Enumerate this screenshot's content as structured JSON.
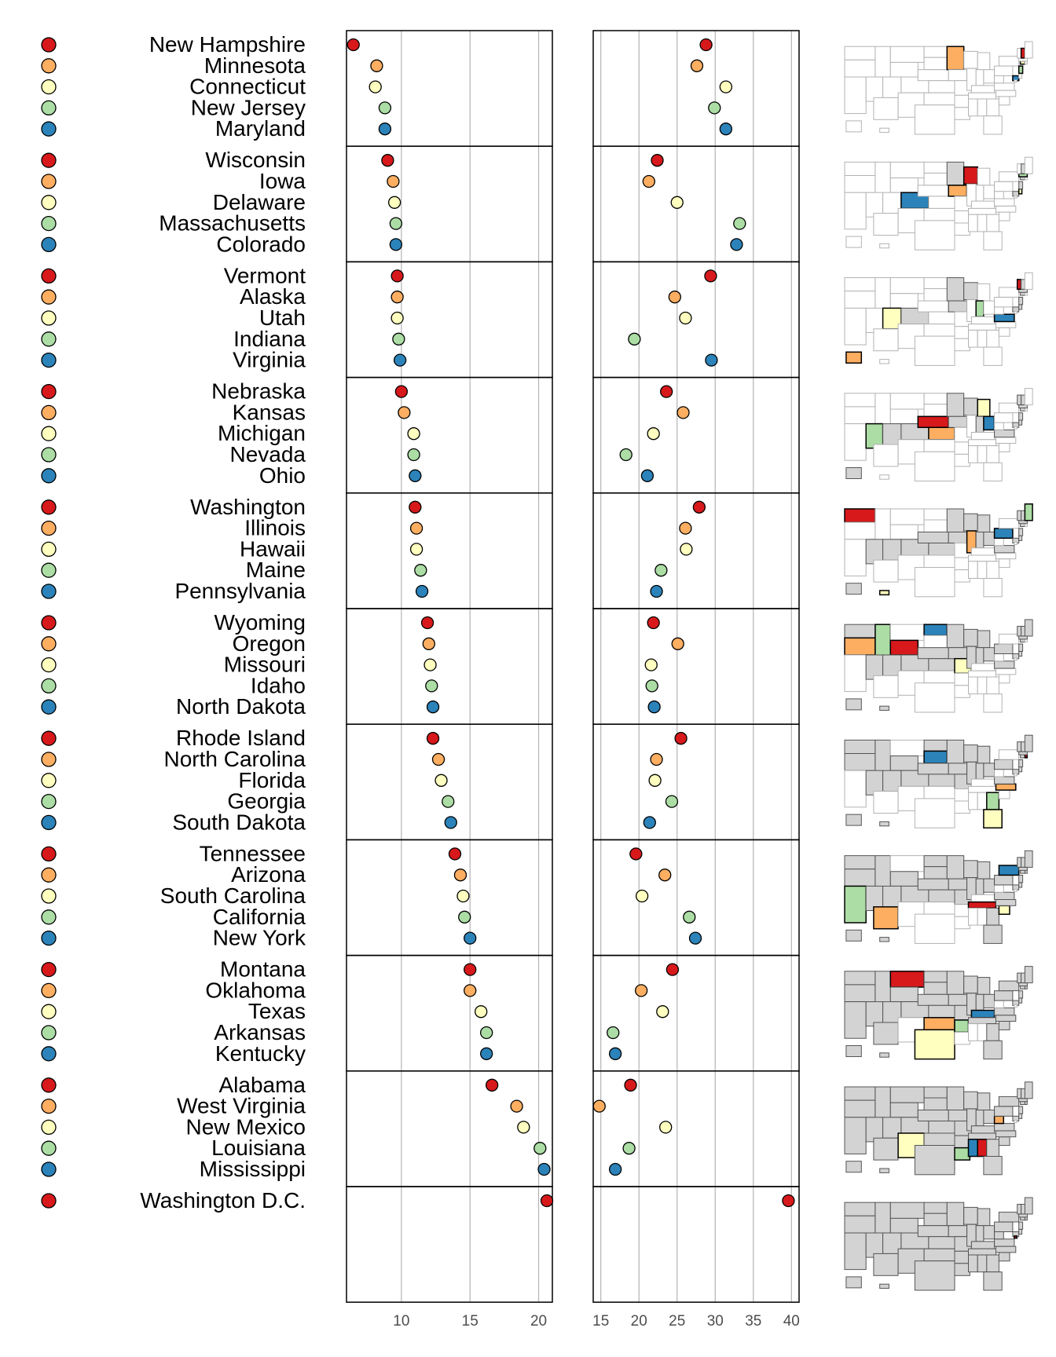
{
  "chart_data": {
    "type": "linked-micromap-dotplot",
    "title": "",
    "palette": [
      "#d7191c",
      "#fdae61",
      "#ffffbf",
      "#abdda4",
      "#2b83ba"
    ],
    "map_colors": {
      "inactive": "#ffffff",
      "previous": "#d3d3d3",
      "outline": "#b3b3b3"
    },
    "panel1": {
      "xlim": [
        6,
        21
      ],
      "ticks": [
        10,
        15,
        20
      ],
      "tick_labels": [
        "10",
        "15",
        "20"
      ]
    },
    "panel2": {
      "xlim": [
        14,
        41
      ],
      "ticks": [
        15,
        20,
        25,
        30,
        35,
        40
      ],
      "tick_labels": [
        "15",
        "20",
        "25",
        "30",
        "35",
        "40"
      ]
    },
    "groups": [
      {
        "states": [
          {
            "name": "New Hampshire",
            "v1": 6.5,
            "v2": 28.8
          },
          {
            "name": "Minnesota",
            "v1": 8.2,
            "v2": 27.6
          },
          {
            "name": "Connecticut",
            "v1": 8.1,
            "v2": 31.4
          },
          {
            "name": "New Jersey",
            "v1": 8.8,
            "v2": 29.9
          },
          {
            "name": "Maryland",
            "v1": 8.8,
            "v2": 31.4
          }
        ]
      },
      {
        "states": [
          {
            "name": "Wisconsin",
            "v1": 9.0,
            "v2": 22.4
          },
          {
            "name": "Iowa",
            "v1": 9.4,
            "v2": 21.3
          },
          {
            "name": "Delaware",
            "v1": 9.5,
            "v2": 25.0
          },
          {
            "name": "Massachusetts",
            "v1": 9.6,
            "v2": 33.2
          },
          {
            "name": "Colorado",
            "v1": 9.6,
            "v2": 32.8
          }
        ]
      },
      {
        "states": [
          {
            "name": "Vermont",
            "v1": 9.7,
            "v2": 29.4
          },
          {
            "name": "Alaska",
            "v1": 9.7,
            "v2": 24.7
          },
          {
            "name": "Utah",
            "v1": 9.7,
            "v2": 26.1
          },
          {
            "name": "Indiana",
            "v1": 9.8,
            "v2": 19.4
          },
          {
            "name": "Virginia",
            "v1": 9.9,
            "v2": 29.5
          }
        ]
      },
      {
        "states": [
          {
            "name": "Nebraska",
            "v1": 10.0,
            "v2": 23.6
          },
          {
            "name": "Kansas",
            "v1": 10.2,
            "v2": 25.8
          },
          {
            "name": "Michigan",
            "v1": 10.9,
            "v2": 21.9
          },
          {
            "name": "Nevada",
            "v1": 10.9,
            "v2": 18.3
          },
          {
            "name": "Ohio",
            "v1": 11.0,
            "v2": 21.1
          }
        ]
      },
      {
        "states": [
          {
            "name": "Washington",
            "v1": 11.0,
            "v2": 27.9
          },
          {
            "name": "Illinois",
            "v1": 11.1,
            "v2": 26.1
          },
          {
            "name": "Hawaii",
            "v1": 11.1,
            "v2": 26.2
          },
          {
            "name": "Maine",
            "v1": 11.4,
            "v2": 22.9
          },
          {
            "name": "Pennsylvania",
            "v1": 11.5,
            "v2": 22.3
          }
        ]
      },
      {
        "states": [
          {
            "name": "Wyoming",
            "v1": 11.9,
            "v2": 21.9
          },
          {
            "name": "Oregon",
            "v1": 12.0,
            "v2": 25.1
          },
          {
            "name": "Missouri",
            "v1": 12.1,
            "v2": 21.6
          },
          {
            "name": "Idaho",
            "v1": 12.2,
            "v2": 21.7
          },
          {
            "name": "North Dakota",
            "v1": 12.3,
            "v2": 22.0
          }
        ]
      },
      {
        "states": [
          {
            "name": "Rhode Island",
            "v1": 12.3,
            "v2": 25.5
          },
          {
            "name": "North Carolina",
            "v1": 12.7,
            "v2": 22.3
          },
          {
            "name": "Florida",
            "v1": 12.9,
            "v2": 22.1
          },
          {
            "name": "Georgia",
            "v1": 13.4,
            "v2": 24.3
          },
          {
            "name": "South Dakota",
            "v1": 13.6,
            "v2": 21.4
          }
        ]
      },
      {
        "states": [
          {
            "name": "Tennessee",
            "v1": 13.9,
            "v2": 19.6
          },
          {
            "name": "Arizona",
            "v1": 14.3,
            "v2": 23.4
          },
          {
            "name": "South Carolina",
            "v1": 14.5,
            "v2": 20.4
          },
          {
            "name": "California",
            "v1": 14.6,
            "v2": 26.6
          },
          {
            "name": "New York",
            "v1": 15.0,
            "v2": 27.4
          }
        ]
      },
      {
        "states": [
          {
            "name": "Montana",
            "v1": 15.0,
            "v2": 24.4
          },
          {
            "name": "Oklahoma",
            "v1": 15.0,
            "v2": 20.3
          },
          {
            "name": "Texas",
            "v1": 15.8,
            "v2": 23.1
          },
          {
            "name": "Arkansas",
            "v1": 16.2,
            "v2": 16.6
          },
          {
            "name": "Kentucky",
            "v1": 16.2,
            "v2": 16.9
          }
        ]
      },
      {
        "states": [
          {
            "name": "Alabama",
            "v1": 16.6,
            "v2": 18.9
          },
          {
            "name": "West Virginia",
            "v1": 18.4,
            "v2": 14.8
          },
          {
            "name": "New Mexico",
            "v1": 18.9,
            "v2": 23.5
          },
          {
            "name": "Louisiana",
            "v1": 20.1,
            "v2": 18.7
          },
          {
            "name": "Mississippi",
            "v1": 20.4,
            "v2": 16.9
          }
        ]
      },
      {
        "states": [
          {
            "name": "Washington D.C.",
            "v1": 20.6,
            "v2": 39.6
          }
        ]
      }
    ]
  }
}
